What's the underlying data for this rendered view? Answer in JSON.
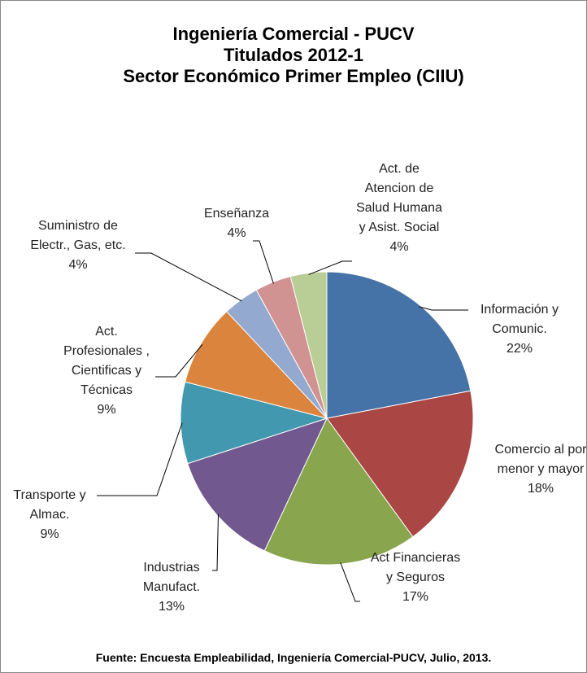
{
  "chart_data": {
    "type": "pie",
    "title": "Ingeniería Comercial - PUCV\nTitulados 2012-1\nSector Económico Primer Empleo (CIIU)",
    "categories": [
      "Información y Comunic.",
      "Comercio al por menor y mayor",
      "Act Financieras y Seguros",
      "Industrias Manufact.",
      "Transporte y Almac.",
      "Act. Profesionales , Cientificas y Técnicas",
      "Suministro de Electr., Gas, etc.",
      "Enseñanza",
      "Act. de Atencion de Salud Humana y Asist. Social"
    ],
    "values": [
      22,
      18,
      17,
      13,
      9,
      9,
      4,
      4,
      4
    ],
    "value_labels": [
      "22%",
      "18%",
      "17%",
      "13%",
      "9%",
      "9%",
      "4%",
      "4%",
      "4%"
    ],
    "colors": [
      "#4572a7",
      "#aa4643",
      "#89a54e",
      "#71588f",
      "#4198af",
      "#db843d",
      "#93a9cf",
      "#d19392",
      "#b9cd96"
    ],
    "source": "Fuente: Encuesta Empleabilidad, Ingeniería Comercial-PUCV, Julio, 2013."
  }
}
